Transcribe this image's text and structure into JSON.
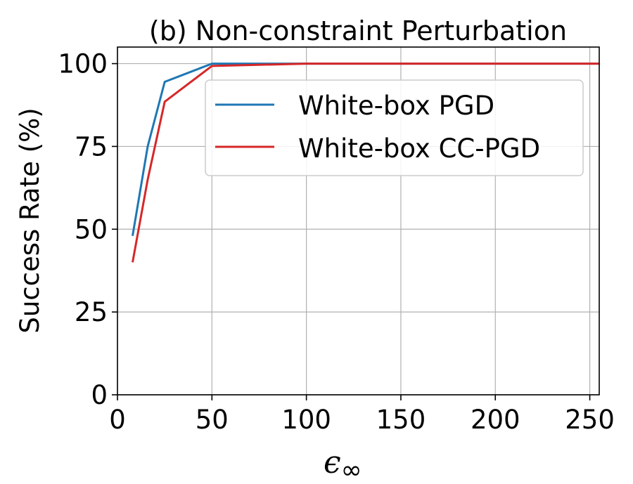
{
  "chart_data": {
    "type": "line",
    "title": "(b) Non-constraint Perturbation",
    "xlabel": "ϵ",
    "xlabel_sub": "∞",
    "ylabel": "Success Rate (%)",
    "xlim": [
      0,
      255
    ],
    "ylim": [
      0,
      105
    ],
    "xticks": [
      0,
      50,
      100,
      150,
      200,
      250
    ],
    "yticks": [
      0,
      25,
      50,
      75,
      100
    ],
    "grid": true,
    "legend_position": "upper-right",
    "series": [
      {
        "name": "White-box PGD",
        "color": "#1f77b4",
        "x": [
          8,
          16,
          25,
          50,
          100,
          150,
          200,
          255
        ],
        "y": [
          48,
          75,
          94.5,
          100,
          100,
          100,
          100,
          100
        ]
      },
      {
        "name": "White-box CC-PGD",
        "color": "#d62728",
        "x": [
          8,
          16,
          25,
          50,
          100,
          150,
          200,
          255
        ],
        "y": [
          40,
          65,
          88.5,
          99.3,
          100,
          100,
          100,
          100
        ]
      }
    ]
  }
}
